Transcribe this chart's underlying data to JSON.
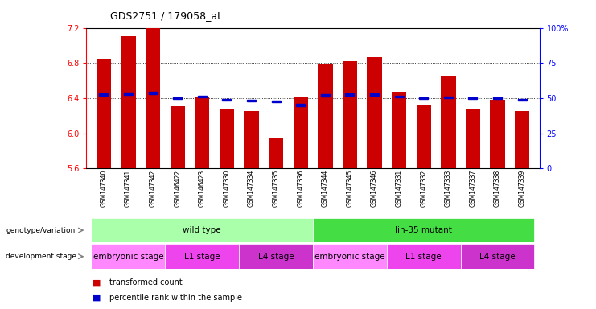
{
  "title": "GDS2751 / 179058_at",
  "samples": [
    "GSM147340",
    "GSM147341",
    "GSM147342",
    "GSM146422",
    "GSM146423",
    "GSM147330",
    "GSM147334",
    "GSM147335",
    "GSM147336",
    "GSM147344",
    "GSM147345",
    "GSM147346",
    "GSM147331",
    "GSM147332",
    "GSM147333",
    "GSM147337",
    "GSM147338",
    "GSM147339"
  ],
  "bar_values": [
    6.85,
    7.1,
    7.2,
    6.31,
    6.41,
    6.27,
    6.25,
    5.95,
    6.41,
    6.79,
    6.82,
    6.87,
    6.47,
    6.33,
    6.65,
    6.27,
    6.38,
    6.25
  ],
  "percentile_values": [
    6.44,
    6.45,
    6.46,
    6.4,
    6.42,
    6.38,
    6.37,
    6.36,
    6.32,
    6.43,
    6.44,
    6.44,
    6.42,
    6.4,
    6.41,
    6.4,
    6.4,
    6.38
  ],
  "ymin": 5.6,
  "ymax": 7.2,
  "yticks": [
    5.6,
    6.0,
    6.4,
    6.8,
    7.2
  ],
  "right_yticks": [
    0,
    25,
    50,
    75,
    100
  ],
  "right_ytick_labels": [
    "0",
    "25",
    "50",
    "75",
    "100%"
  ],
  "bar_color": "#cc0000",
  "percentile_color": "#0000cc",
  "groups": {
    "genotype": [
      {
        "label": "wild type",
        "start": 0,
        "end": 9,
        "color": "#aaffaa"
      },
      {
        "label": "lin-35 mutant",
        "start": 9,
        "end": 18,
        "color": "#44dd44"
      }
    ],
    "stage": [
      {
        "label": "embryonic stage",
        "start": 0,
        "end": 3,
        "color": "#ff88ff"
      },
      {
        "label": "L1 stage",
        "start": 3,
        "end": 6,
        "color": "#ee44ee"
      },
      {
        "label": "L4 stage",
        "start": 6,
        "end": 9,
        "color": "#cc33cc"
      },
      {
        "label": "embryonic stage",
        "start": 9,
        "end": 12,
        "color": "#ff88ff"
      },
      {
        "label": "L1 stage",
        "start": 12,
        "end": 15,
        "color": "#ee44ee"
      },
      {
        "label": "L4 stage",
        "start": 15,
        "end": 18,
        "color": "#cc33cc"
      }
    ]
  },
  "legend_items": [
    {
      "label": "transformed count",
      "color": "#cc0000"
    },
    {
      "label": "percentile rank within the sample",
      "color": "#0000cc"
    }
  ]
}
